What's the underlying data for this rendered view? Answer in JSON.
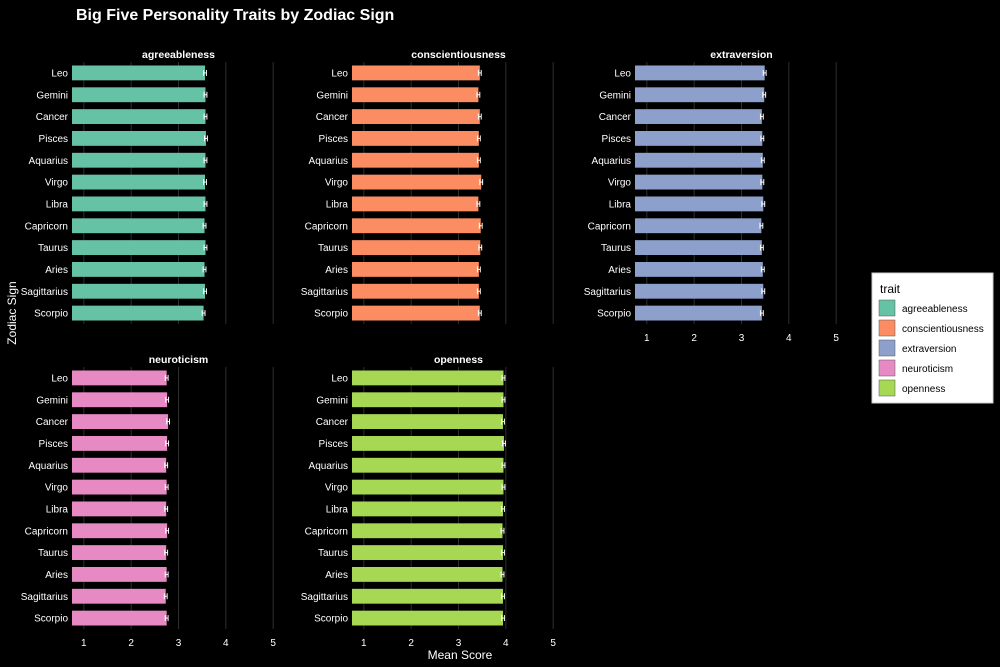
{
  "chart_data": {
    "type": "bar",
    "orientation": "horizontal",
    "title": "Big Five Personality Traits by Zodiac Sign",
    "xlabel": "Mean Score",
    "ylabel": "Zodiac Sign",
    "xlim": [
      0.75,
      5.25
    ],
    "xticks": [
      1,
      2,
      3,
      4,
      5
    ],
    "grid": true,
    "legend": {
      "title": "trait",
      "position": "right",
      "entries": [
        "agreeableness",
        "conscientiousness",
        "extraversion",
        "neuroticism",
        "openness"
      ]
    },
    "categories": [
      "Leo",
      "Gemini",
      "Cancer",
      "Pisces",
      "Aquarius",
      "Virgo",
      "Libra",
      "Capricorn",
      "Taurus",
      "Aries",
      "Sagittarius",
      "Scorpio"
    ],
    "series": [
      {
        "name": "agreeableness",
        "color": "#66c2a5",
        "values": [
          3.56,
          3.57,
          3.57,
          3.58,
          3.57,
          3.56,
          3.57,
          3.55,
          3.57,
          3.55,
          3.56,
          3.53
        ],
        "error": 0.03
      },
      {
        "name": "conscientiousness",
        "color": "#fc8d62",
        "values": [
          3.45,
          3.42,
          3.45,
          3.43,
          3.43,
          3.48,
          3.42,
          3.47,
          3.46,
          3.43,
          3.43,
          3.45
        ],
        "error": 0.03
      },
      {
        "name": "extraversion",
        "color": "#8da0cb",
        "values": [
          3.49,
          3.48,
          3.43,
          3.44,
          3.45,
          3.44,
          3.46,
          3.42,
          3.43,
          3.45,
          3.46,
          3.43
        ],
        "error": 0.03
      },
      {
        "name": "neuroticism",
        "color": "#e78ac3",
        "values": [
          2.75,
          2.76,
          2.78,
          2.76,
          2.74,
          2.75,
          2.74,
          2.76,
          2.74,
          2.75,
          2.73,
          2.75
        ],
        "error": 0.03
      },
      {
        "name": "openness",
        "color": "#a6d854",
        "values": [
          3.95,
          3.95,
          3.94,
          3.96,
          3.95,
          3.95,
          3.94,
          3.93,
          3.94,
          3.93,
          3.94,
          3.94
        ],
        "error": 0.03
      }
    ]
  }
}
